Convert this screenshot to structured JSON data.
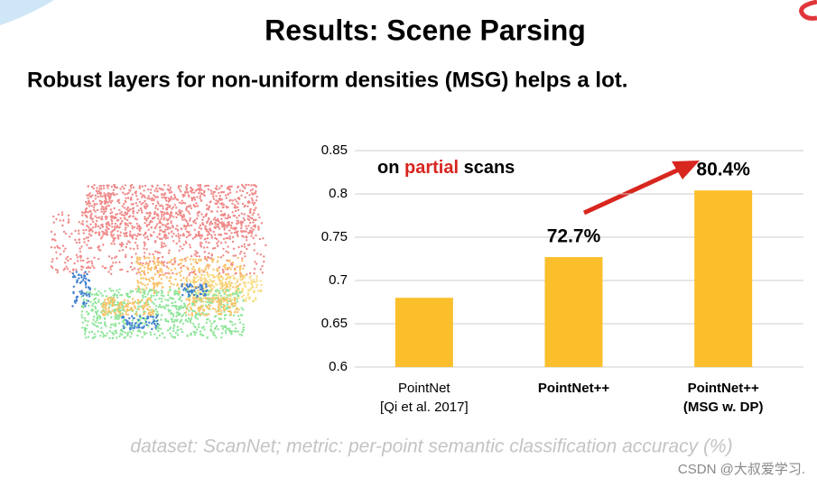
{
  "chart_data": {
    "type": "bar",
    "title": "Results: Scene Parsing",
    "subtitle": "Robust layers for non-uniform densities (MSG) helps a lot.",
    "annotation": [
      "on ",
      "partial",
      " scans"
    ],
    "categories": [
      [
        "PointNet",
        "[Qi et al. 2017]"
      ],
      [
        "PointNet++"
      ],
      [
        "PointNet++",
        "(MSG w. DP)"
      ]
    ],
    "values": [
      0.68,
      0.727,
      0.804
    ],
    "value_labels": [
      null,
      "72.7%",
      "80.4%"
    ],
    "color": "#fbbf2c",
    "ylim": [
      0.6,
      0.85
    ],
    "yticks": [
      0.6,
      0.65,
      0.7,
      0.75,
      0.8,
      0.85
    ],
    "grid": true,
    "footnote": "dataset: ScanNet; metric: per-point semantic classification accuracy (%)",
    "watermark": "CSDN @大叔爱学习."
  }
}
